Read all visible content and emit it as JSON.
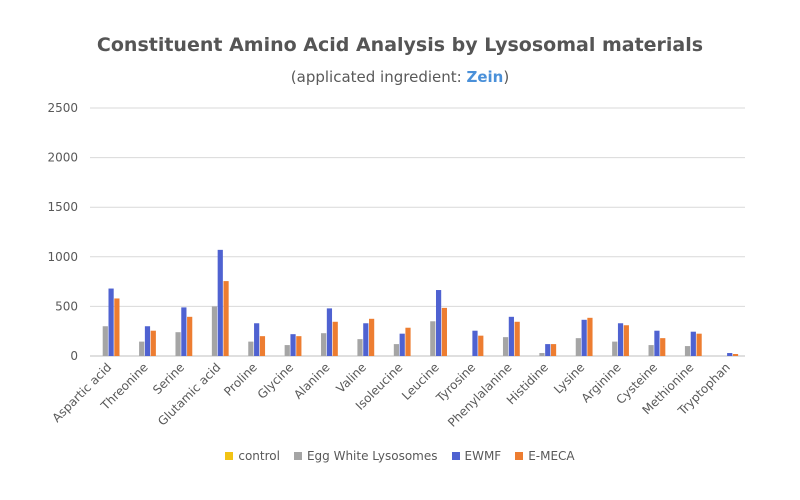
{
  "header": {
    "title": "Constituent Amino Acid Analysis by Lysosomal materials",
    "subtitle_prefix": "(applicated ingredient: ",
    "subtitle_highlight": "Zein",
    "subtitle_suffix": ")"
  },
  "chart_data": {
    "type": "bar",
    "title": "Constituent Amino Acid Analysis by Lysosomal materials",
    "subtitle": "(applicated ingredient: Zein)",
    "xlabel": "",
    "ylabel": "",
    "ylim": [
      0,
      2500
    ],
    "yticks": [
      "0",
      "500",
      "1000",
      "1500",
      "2000",
      "2500"
    ],
    "grid": true,
    "legend_position": "bottom",
    "categories": [
      "Aspartic acid",
      "Threonine",
      "Serine",
      "Glutamic acid",
      "Proline",
      "Glycine",
      "Alanine",
      "Valine",
      "Isoleucine",
      "Leucine",
      "Tyrosine",
      "Phenylalanine",
      "Histidine",
      "Lysine",
      "Arginine",
      "Cysteine",
      "Methionine",
      "Tryptophan"
    ],
    "series": [
      {
        "name": "control",
        "color": "#f2c314",
        "values": [
          0,
          0,
          0,
          0,
          0,
          0,
          0,
          0,
          0,
          0,
          0,
          0,
          0,
          0,
          0,
          0,
          0,
          0
        ]
      },
      {
        "name": "Egg White Lysosomes",
        "color": "#a5a5a5",
        "values": [
          300,
          145,
          240,
          500,
          145,
          110,
          230,
          170,
          120,
          350,
          0,
          190,
          30,
          180,
          145,
          110,
          100,
          0
        ]
      },
      {
        "name": "EWMF",
        "color": "#4f62d1",
        "values": [
          680,
          300,
          490,
          1070,
          330,
          220,
          480,
          330,
          225,
          665,
          255,
          395,
          120,
          365,
          330,
          255,
          245,
          30
        ]
      },
      {
        "name": "E-MECA",
        "color": "#ed7d31",
        "values": [
          580,
          255,
          395,
          755,
          200,
          200,
          345,
          375,
          285,
          485,
          205,
          345,
          120,
          385,
          310,
          180,
          225,
          20
        ]
      }
    ]
  }
}
